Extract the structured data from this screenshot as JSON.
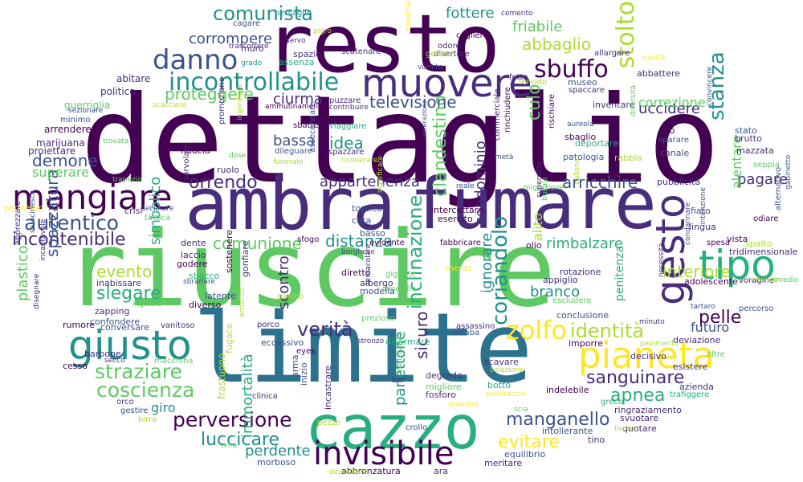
{
  "palette": {
    "dark_purple": "#440154",
    "purple": "#472d7b",
    "indigo": "#3b528b",
    "blue": "#2c728e",
    "teal": "#21918c",
    "green_teal": "#28ae80",
    "green": "#5ec962",
    "lime": "#addc30",
    "yellow": "#fde725"
  },
  "words": [
    {
      "text": "dettaglio",
      "color": "#440154"
    },
    {
      "text": "riuscire",
      "color": "#5ec962"
    },
    {
      "text": "resto",
      "color": "#440154"
    },
    {
      "text": "limite",
      "color": "#2c728e"
    },
    {
      "text": "fumare",
      "color": "#472d7b"
    },
    {
      "text": "ambra",
      "color": "#472d7b"
    },
    {
      "text": "cazzo",
      "color": "#28ae80"
    },
    {
      "text": "mangiare",
      "color": "#440154"
    },
    {
      "text": "muovere",
      "color": "#472d7b"
    },
    {
      "text": "giusto",
      "color": "#21918c"
    },
    {
      "text": "tipo",
      "color": "#28ae80"
    },
    {
      "text": "pianeta",
      "color": "#fde725"
    },
    {
      "text": "gesto",
      "color": "#472d7b"
    },
    {
      "text": "invisibile",
      "color": "#440154"
    },
    {
      "text": "danno",
      "color": "#3b528b"
    },
    {
      "text": "sbuffo",
      "color": "#440154"
    },
    {
      "text": "incontrollabile",
      "color": "#21918c"
    },
    {
      "text": "zolfo",
      "color": "#fde725"
    },
    {
      "text": "straziare",
      "color": "#5ec962"
    },
    {
      "text": "coscienza",
      "color": "#5ec962"
    },
    {
      "text": "stolto",
      "color": "#addc30"
    },
    {
      "text": "autentico",
      "color": "#3b528b"
    },
    {
      "text": "incontenibile",
      "color": "#472d7b"
    },
    {
      "text": "comunista",
      "color": "#21918c"
    },
    {
      "text": "abbaglio",
      "color": "#addc30"
    },
    {
      "text": "verità",
      "color": "#472d7b"
    },
    {
      "text": "identità",
      "color": "#addc30"
    },
    {
      "text": "stanza",
      "color": "#21918c"
    },
    {
      "text": "perversione",
      "color": "#440154"
    },
    {
      "text": "manganello",
      "color": "#3b528b"
    },
    {
      "text": "luccicare",
      "color": "#21918c"
    },
    {
      "text": "coriandolo",
      "color": "#21918c"
    },
    {
      "text": "inclinazione",
      "color": "#28ae80"
    },
    {
      "text": "clandestino",
      "color": "#5ec962"
    },
    {
      "text": "sanguinare",
      "color": "#472d7b"
    },
    {
      "text": "apnea",
      "color": "#28ae80"
    },
    {
      "text": "evitare",
      "color": "#fde725"
    },
    {
      "text": "pelle",
      "color": "#440154"
    },
    {
      "text": "arricchire",
      "color": "#3b528b"
    },
    {
      "text": "orrendo",
      "color": "#472d7b"
    },
    {
      "text": "demone",
      "color": "#3b528b"
    },
    {
      "text": "slegare",
      "color": "#28ae80"
    },
    {
      "text": "televisione",
      "color": "#3b528b"
    },
    {
      "text": "proteggere",
      "color": "#5ec962"
    },
    {
      "text": "comunione",
      "color": "#5ec962"
    },
    {
      "text": "spazzatura",
      "color": "#3b528b"
    },
    {
      "text": "interiore",
      "color": "#addc30"
    },
    {
      "text": "corrompere",
      "color": "#3b528b"
    },
    {
      "text": "culo",
      "color": "#5ec962"
    },
    {
      "text": "fottere",
      "color": "#21918c"
    },
    {
      "text": "friabile",
      "color": "#5ec962"
    },
    {
      "text": "uccidere",
      "color": "#472d7b"
    },
    {
      "text": "correzione",
      "color": "#5ec962"
    },
    {
      "text": "ciurma",
      "color": "#472d7b"
    },
    {
      "text": "idea",
      "color": "#21918c"
    },
    {
      "text": "bassa",
      "color": "#3b528b"
    },
    {
      "text": "distanza",
      "color": "#21918c"
    },
    {
      "text": "evento",
      "color": "#addc30"
    },
    {
      "text": "rimbalzare",
      "color": "#28ae80"
    },
    {
      "text": "superare",
      "color": "#5ec962"
    },
    {
      "text": "appartenenza",
      "color": "#472d7b"
    },
    {
      "text": "pagare",
      "color": "#472d7b"
    },
    {
      "text": "branco",
      "color": "#21918c"
    },
    {
      "text": "futuro",
      "color": "#3b528b"
    },
    {
      "text": "giro",
      "color": "#21918c"
    },
    {
      "text": "perdente",
      "color": "#21918c"
    },
    {
      "text": "simbolico",
      "color": "#28ae80"
    },
    {
      "text": "condominio",
      "color": "#472d7b"
    },
    {
      "text": "ignorare",
      "color": "#21918c"
    },
    {
      "text": "scontro",
      "color": "#472d7b"
    },
    {
      "text": "immortalità",
      "color": "#28ae80"
    },
    {
      "text": "panettone",
      "color": "#21918c"
    },
    {
      "text": "sicuro",
      "color": "#472d7b"
    },
    {
      "text": "alito",
      "color": "#addc30"
    },
    {
      "text": "plastico",
      "color": "#5ec962"
    },
    {
      "text": "penitenza",
      "color": "#28ae80"
    },
    {
      "text": "alentare",
      "color": "#5ec962"
    },
    {
      "text": "abitare",
      "color": "#472d7b"
    },
    {
      "text": "politico",
      "color": "#472d7b"
    },
    {
      "text": "guerriglia",
      "color": "#5ec962"
    },
    {
      "text": "arrendere",
      "color": "#440154"
    },
    {
      "text": "marijuana",
      "color": "#472d7b"
    },
    {
      "text": "proiettare",
      "color": "#472d7b"
    },
    {
      "text": "minimo",
      "color": "#3b528b"
    },
    {
      "text": "sezionare",
      "color": "#3b528b"
    },
    {
      "text": "trovata",
      "color": "#5ec962"
    },
    {
      "text": "fiducia",
      "color": "#440154"
    },
    {
      "text": "ruolo",
      "color": "#472d7b"
    },
    {
      "text": "crisi",
      "color": "#472d7b"
    },
    {
      "text": "declinare",
      "color": "#3b528b"
    },
    {
      "text": "tattica",
      "color": "#5ec962"
    },
    {
      "text": "dente",
      "color": "#472d7b"
    },
    {
      "text": "laccio",
      "color": "#472d7b"
    },
    {
      "text": "godere",
      "color": "#440154"
    },
    {
      "text": "sbocco",
      "color": "#28ae80"
    },
    {
      "text": "inabissare",
      "color": "#472d7b"
    },
    {
      "text": "latente",
      "color": "#3b528b"
    },
    {
      "text": "diverso",
      "color": "#440154"
    },
    {
      "text": "zapping",
      "color": "#472d7b"
    },
    {
      "text": "confondere",
      "color": "#3b528b"
    },
    {
      "text": "conversare",
      "color": "#3b528b"
    },
    {
      "text": "rumore",
      "color": "#440154"
    },
    {
      "text": "vanitoso",
      "color": "#472d7b"
    },
    {
      "text": "barbone",
      "color": "#472d7b"
    },
    {
      "text": "cesso",
      "color": "#440154"
    },
    {
      "text": "macchina",
      "color": "#5ec962"
    },
    {
      "text": "orco",
      "color": "#472d7b"
    },
    {
      "text": "gestire",
      "color": "#3b528b"
    },
    {
      "text": "birra",
      "color": "#addc30"
    },
    {
      "text": "secco",
      "color": "#472d7b"
    },
    {
      "text": "morboso",
      "color": "#3b528b"
    },
    {
      "text": "frastuono",
      "color": "#addc30"
    },
    {
      "text": "fugace",
      "color": "#addc30"
    },
    {
      "text": "clinica",
      "color": "#472d7b"
    },
    {
      "text": "eccessivo",
      "color": "#3b528b"
    },
    {
      "text": "eyes",
      "color": "#440154"
    },
    {
      "text": "arma",
      "color": "#3b528b"
    },
    {
      "text": "inizio",
      "color": "#3b528b"
    },
    {
      "text": "incastrare",
      "color": "#472d7b"
    },
    {
      "text": "pezzo",
      "color": "#addc30"
    },
    {
      "text": "disarmare",
      "color": "#28ae80"
    },
    {
      "text": "degrado",
      "color": "#472d7b"
    },
    {
      "text": "migliore",
      "color": "#5ec962"
    },
    {
      "text": "fosforo",
      "color": "#472d7b"
    },
    {
      "text": "crollo",
      "color": "#3b528b"
    },
    {
      "text": "bar",
      "color": "#472d7b"
    },
    {
      "text": "scavare",
      "color": "#472d7b"
    },
    {
      "text": "botto",
      "color": "#28ae80"
    },
    {
      "text": "poveraccio",
      "color": "#fde725"
    },
    {
      "text": "colazione",
      "color": "#addc30"
    },
    {
      "text": "indelebile",
      "color": "#440154"
    },
    {
      "text": "greco",
      "color": "#28ae80"
    },
    {
      "text": "ringraziamento",
      "color": "#472d7b"
    },
    {
      "text": "svuotare",
      "color": "#472d7b"
    },
    {
      "text": "intollerante",
      "color": "#3b528b"
    },
    {
      "text": "quotare",
      "color": "#472d7b"
    },
    {
      "text": "tino",
      "color": "#472d7b"
    },
    {
      "text": "equilibrio",
      "color": "#3b528b"
    },
    {
      "text": "meritare",
      "color": "#472d7b"
    },
    {
      "text": "abbronzatura",
      "color": "#440154"
    },
    {
      "text": "ara",
      "color": "#472d7b"
    },
    {
      "text": "depositare",
      "color": "#addc30"
    },
    {
      "text": "imporre",
      "color": "#440154"
    },
    {
      "text": "deviazione",
      "color": "#472d7b"
    },
    {
      "text": "decisivo",
      "color": "#472d7b"
    },
    {
      "text": "esistere",
      "color": "#472d7b"
    },
    {
      "text": "azienda",
      "color": "#472d7b"
    },
    {
      "text": "trafiggere",
      "color": "#28ae80"
    },
    {
      "text": "oltre",
      "color": "#5ec962"
    },
    {
      "text": "percorso",
      "color": "#3b528b"
    },
    {
      "text": "voragine",
      "color": "#472d7b"
    },
    {
      "text": "adolescente",
      "color": "#440154"
    },
    {
      "text": "tartaro",
      "color": "#3b528b"
    },
    {
      "text": "tridimensionale",
      "color": "#472d7b"
    },
    {
      "text": "spalto",
      "color": "#addc30"
    },
    {
      "text": "vista",
      "color": "#440154"
    },
    {
      "text": "lingua",
      "color": "#472d7b"
    },
    {
      "text": "fiato",
      "color": "#3b528b"
    },
    {
      "text": "odiare",
      "color": "#440154"
    },
    {
      "text": "pubblicità",
      "color": "#472d7b"
    },
    {
      "text": "mazzata",
      "color": "#472d7b"
    },
    {
      "text": "seppia",
      "color": "#5ec962"
    },
    {
      "text": "stato",
      "color": "#3b528b"
    },
    {
      "text": "brutto",
      "color": "#472d7b"
    },
    {
      "text": "canale",
      "color": "#3b528b"
    },
    {
      "text": "sparare",
      "color": "#3b528b"
    },
    {
      "text": "tiro",
      "color": "#440154"
    },
    {
      "text": "abbattere",
      "color": "#472d7b"
    },
    {
      "text": "carità",
      "color": "#fde725"
    },
    {
      "text": "allargare",
      "color": "#472d7b"
    },
    {
      "text": "fervido",
      "color": "#addc30"
    },
    {
      "text": "spesa",
      "color": "#440154"
    },
    {
      "text": "museo",
      "color": "#3b528b"
    },
    {
      "text": "spaccare",
      "color": "#472d7b"
    },
    {
      "text": "inventare",
      "color": "#472d7b"
    },
    {
      "text": "sbaglio",
      "color": "#440154"
    },
    {
      "text": "deportare",
      "color": "#28ae80"
    },
    {
      "text": "patologia",
      "color": "#3b528b"
    },
    {
      "text": "rabbia",
      "color": "#addc30"
    },
    {
      "text": "conclusione",
      "color": "#3b528b"
    },
    {
      "text": "escludere",
      "color": "#5ec962"
    },
    {
      "text": "appiglio",
      "color": "#472d7b"
    },
    {
      "text": "rotazione",
      "color": "#472d7b"
    },
    {
      "text": "olio",
      "color": "#440154"
    },
    {
      "text": "cura",
      "color": "#3b528b"
    },
    {
      "text": "basso",
      "color": "#3b528b"
    },
    {
      "text": "tossico",
      "color": "#3b528b"
    },
    {
      "text": "esercito",
      "color": "#440154"
    },
    {
      "text": "intercettare",
      "color": "#440154"
    },
    {
      "text": "modella",
      "color": "#3b528b"
    },
    {
      "text": "albergo",
      "color": "#472d7b"
    },
    {
      "text": "gigante",
      "color": "#5ec962"
    },
    {
      "text": "diretto",
      "color": "#440154"
    },
    {
      "text": "evidente",
      "color": "#440154"
    },
    {
      "text": "fabbricare",
      "color": "#440154"
    },
    {
      "text": "merda",
      "color": "#fde725"
    },
    {
      "text": "sfogo",
      "color": "#440154"
    },
    {
      "text": "borghese",
      "color": "#3b528b"
    },
    {
      "text": "sostenere",
      "color": "#440154"
    },
    {
      "text": "gonfiare",
      "color": "#472d7b"
    },
    {
      "text": "panico",
      "color": "#addc30"
    },
    {
      "text": "porco",
      "color": "#472d7b"
    },
    {
      "text": "prezioso",
      "color": "#5ec962"
    },
    {
      "text": "assassino",
      "color": "#472d7b"
    },
    {
      "text": "sillaba",
      "color": "#3b528b"
    },
    {
      "text": "stronzo",
      "color": "#472d7b"
    },
    {
      "text": "reale",
      "color": "#3b528b"
    },
    {
      "text": "migrazione",
      "color": "#5ec962"
    },
    {
      "text": "metà",
      "color": "#3b528b"
    },
    {
      "text": "commerciale",
      "color": "#472d7b"
    },
    {
      "text": "rinchiudere",
      "color": "#440154"
    },
    {
      "text": "rischiare",
      "color": "#440154"
    },
    {
      "text": "fetta",
      "color": "#472d7b"
    },
    {
      "text": "vomito",
      "color": "#3b528b"
    },
    {
      "text": "odore",
      "color": "#472d7b"
    },
    {
      "text": "disertore",
      "color": "#472d7b"
    },
    {
      "text": "cogliere",
      "color": "#440154"
    },
    {
      "text": "cemento",
      "color": "#472d7b"
    },
    {
      "text": "cagare",
      "color": "#3b528b"
    },
    {
      "text": "muro",
      "color": "#472d7b"
    },
    {
      "text": "servo",
      "color": "#472d7b"
    },
    {
      "text": "bersaglio",
      "color": "#21918c"
    },
    {
      "text": "spazio",
      "color": "#472d7b"
    },
    {
      "text": "assenza",
      "color": "#28ae80"
    },
    {
      "text": "scatenare",
      "color": "#472d7b"
    },
    {
      "text": "gentile",
      "color": "#addc30"
    },
    {
      "text": "trascorrere",
      "color": "#472d7b"
    },
    {
      "text": "grado",
      "color": "#21918c"
    },
    {
      "text": "pigro",
      "color": "#addc30"
    },
    {
      "text": "puzzare",
      "color": "#472d7b"
    },
    {
      "text": "contribuire",
      "color": "#472d7b"
    },
    {
      "text": "ammutinamento",
      "color": "#440154"
    },
    {
      "text": "scacciare",
      "color": "#addc30"
    },
    {
      "text": "sbattere",
      "color": "#440154"
    },
    {
      "text": "viaggiare",
      "color": "#28ae80"
    },
    {
      "text": "dileguare",
      "color": "#3b528b"
    },
    {
      "text": "spazzare",
      "color": "#472d7b"
    },
    {
      "text": "ricoverare",
      "color": "#addc30"
    },
    {
      "text": "funerale",
      "color": "#addc30"
    },
    {
      "text": "assecondare",
      "color": "#3b528b"
    },
    {
      "text": "promozione",
      "color": "#472d7b"
    },
    {
      "text": "dose",
      "color": "#5ec962"
    },
    {
      "text": "ingordigia",
      "color": "#addc30"
    },
    {
      "text": "trapezio",
      "color": "#5ec962"
    },
    {
      "text": "sorvolare",
      "color": "#472d7b"
    },
    {
      "text": "permesso",
      "color": "#fde725"
    },
    {
      "text": "ingoiare",
      "color": "#5ec962"
    },
    {
      "text": "sbranare",
      "color": "#3b528b"
    },
    {
      "text": "apprezzare",
      "color": "#472d7b"
    },
    {
      "text": "saracinesca",
      "color": "#3b528b"
    },
    {
      "text": "incantevole",
      "color": "#472d7b"
    },
    {
      "text": "disegnare",
      "color": "#472d7b"
    },
    {
      "text": "alternativo",
      "color": "#3b528b"
    },
    {
      "text": "gabinetto",
      "color": "#3b528b"
    },
    {
      "text": "necessità",
      "color": "#472d7b"
    },
    {
      "text": "minuto",
      "color": "#472d7b"
    },
    {
      "text": "pavimento",
      "color": "#addc30"
    },
    {
      "text": "condannare",
      "color": "#3b528b"
    },
    {
      "text": "intenzione",
      "color": "#3b528b"
    },
    {
      "text": "convincere",
      "color": "#3b528b"
    },
    {
      "text": "diversità",
      "color": "#5ec962"
    },
    {
      "text": "superstite",
      "color": "#472d7b"
    },
    {
      "text": "bucale",
      "color": "#5ec962"
    },
    {
      "text": "aureola",
      "color": "#3b528b"
    },
    {
      "text": "lacerazione",
      "color": "#3b528b"
    },
    {
      "text": "significare",
      "color": "#addc30"
    },
    {
      "text": "tentacolare",
      "color": "#472d7b"
    },
    {
      "text": "stipendio",
      "color": "#5ec962"
    },
    {
      "text": "ineluttabile",
      "color": "#5ec962"
    },
    {
      "text": "scambio",
      "color": "#fde725"
    },
    {
      "text": "scia",
      "color": "#5ec962"
    },
    {
      "text": "tena",
      "color": "#5ec962"
    },
    {
      "text": "investire",
      "color": "#fde725"
    },
    {
      "text": "rimedio",
      "color": "#5ec962"
    },
    {
      "text": "artistico",
      "color": "#addc30"
    },
    {
      "text": "intenso",
      "color": "#addc30"
    },
    {
      "text": "livore",
      "color": "#addc30"
    },
    {
      "text": "pallone",
      "color": "#addc30"
    }
  ]
}
